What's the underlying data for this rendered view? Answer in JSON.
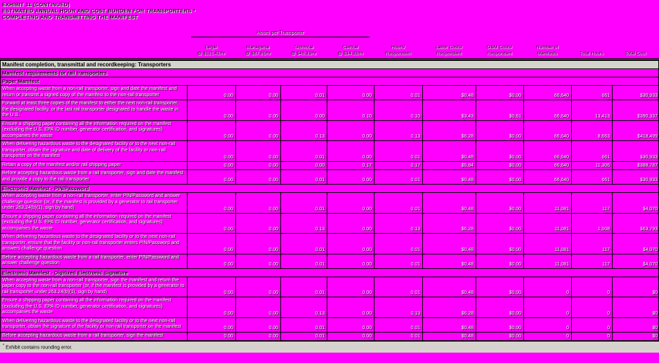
{
  "page": {
    "titles": [
      "EXHIBIT 11 (CONTINUED)",
      "ESTIMATED ANNUAL HOUR AND COST BURDEN FOR TRANSPORTERS *",
      "COMPLETING AND TRANSMITTING THE MANIFEST"
    ]
  },
  "table": {
    "group_header": "Hours per Transporter",
    "columns": [
      {
        "lines": []
      },
      {
        "lines": [
          "Legal",
          "@ $115.42/hr"
        ]
      },
      {
        "lines": [
          "Managerial",
          "@ $87.81/hr"
        ]
      },
      {
        "lines": [
          "Technical",
          "@ $48.33/hr"
        ]
      },
      {
        "lines": [
          "Clerical",
          "@ $34.33/hr"
        ]
      },
      {
        "lines": [
          "Hours/",
          "Respondent"
        ]
      },
      {
        "lines": [
          "Labor Costs/",
          "Respondent"
        ]
      },
      {
        "lines": [
          "O&M Costs/",
          "Respondent"
        ]
      },
      {
        "lines": [
          "Number of",
          "Manifests"
        ]
      },
      {
        "lines": [
          "Total Hours"
        ]
      },
      {
        "lines": [
          "Total Cost"
        ]
      }
    ],
    "band": "Manifest completion, transmittal and recordkeeping:  Transporters",
    "subband": "Manifest requirements for rail transporters",
    "sections": [
      {
        "title": "Paper Manifest",
        "rows": [
          {
            "desc": "When accepting waste from a non-rail transporter, sign and date the manifest and return or transmit a signed copy of the manifest to the non-rail transporter",
            "values": [
              "0.00",
              "0.00",
              "0.01",
              "0.00",
              "0.01",
              "$0.48",
              "$0.00",
              "66,640",
              "661",
              "$30,933"
            ]
          },
          {
            "desc": "Forward at least three copies of the manifest to either the next non-rail transporter, the designated facility, or the last rail transporter designated to handle the waste in the U.S.",
            "values": [
              "0.00",
              "0.00",
              "0.00",
              "0.10",
              "0.10",
              "$3.43",
              "$0.61",
              "66,640",
              "13,413",
              "$390,337"
            ]
          },
          {
            "desc": "Ensure a shipping paper containing all the information required on the manifest (excluding the U.S. EPA ID number, generator certification, and signatures) accompanies the waste",
            "values": [
              "0.00",
              "0.00",
              "0.13",
              "0.00",
              "0.13",
              "$6.28",
              "$0.00",
              "66,640",
              "8,663",
              "$418,499"
            ]
          },
          {
            "desc": "When delivering hazardous waste to the designated facility or to the next non-rail transporter, obtain the signature and date of delivery of the facility or non-rail transporter on the manifest",
            "values": [
              "0.00",
              "0.00",
              "0.01",
              "0.00",
              "0.01",
              "$0.48",
              "$0.00",
              "66,640",
              "661",
              "$30,933"
            ]
          },
          {
            "desc": "Retain a copy of the manifest and/or rail shipping paper",
            "values": [
              "0.00",
              "0.00",
              "0.00",
              "0.17",
              "0.17",
              "$5.84",
              "$0.00",
              "66,640",
              "11,306",
              "$388,787"
            ]
          },
          {
            "desc": "Before accepting hazardous waste from a rail transporter, sign and date the manifest and provide a copy to the rail transporter",
            "values": [
              "0.00",
              "0.00",
              "0.01",
              "0.00",
              "0.01",
              "$0.48",
              "$0.00",
              "66,640",
              "661",
              "$30,933"
            ]
          }
        ]
      },
      {
        "title": "Electronic Manifest - PIN/Password",
        "rows": [
          {
            "desc": "When accepting waste from a non-rail transporter, enter PIN/Password and answer challenge question (or, if the manifest is provided by a generator to rail transporter under 263.24(b)(1), sign by hand)",
            "values": [
              "0.00",
              "0.00",
              "0.01",
              "0.00",
              "0.01",
              "$0.48",
              "$0.00",
              "11,081",
              "117",
              "$4,070"
            ]
          },
          {
            "desc": "Ensure a shipping paper containing all the information required on the manifest (excluding the U.S. EPA ID number, generator certification, and signatures) accompanies the waste",
            "values": [
              "0.00",
              "0.00",
              "0.13",
              "0.00",
              "0.13",
              "$6.28",
              "$0.00",
              "11,081",
              "1,508",
              "$63,793"
            ]
          },
          {
            "desc": "When delivering hazardous waste to the designated facility or to the next non-rail transporter, ensure that the facility or non-rail transporter enters PIN/Password and answers challenge question",
            "values": [
              "0.00",
              "0.00",
              "0.01",
              "0.00",
              "0.01",
              "$0.48",
              "$0.00",
              "11,081",
              "117",
              "$4,070"
            ]
          },
          {
            "desc": "Before accepting hazardous waste from a rail transporter, enter PIN/Password and answer challenge question",
            "values": [
              "0.00",
              "0.00",
              "0.01",
              "0.00",
              "0.01",
              "$0.48",
              "$0.00",
              "11,081",
              "117",
              "$4,070"
            ]
          }
        ]
      },
      {
        "title": "Electronic Manifest - Digitized Electronic Signature",
        "rows": [
          {
            "desc": "When accepting waste from a non-rail transporter, sign the manifest and return the paper copy to the non-rail transporter (or, if the manifest is provided by a generator to rail transporter under 263.24(b)(1), sign by hand)",
            "values": [
              "0.00",
              "0.00",
              "0.01",
              "0.00",
              "0.01",
              "$0.48",
              "$0.00",
              "0",
              "0",
              "$0"
            ]
          },
          {
            "desc": "Ensure a shipping paper containing all the information required on the manifest (excluding the U.S. EPA ID number, generator certification, and signatures) accompanies the waste",
            "values": [
              "0.00",
              "0.00",
              "0.13",
              "0.00",
              "0.13",
              "$6.28",
              "$0.00",
              "0",
              "0",
              "$0"
            ]
          },
          {
            "desc": "When delivering hazardous waste to the designated facility or to the next non-rail transporter, obtain the signature of the facility or non-rail transporter on the manifest",
            "values": [
              "0.00",
              "0.00",
              "0.01",
              "0.00",
              "0.01",
              "$0.48",
              "$0.00",
              "0",
              "0",
              "$0"
            ]
          },
          {
            "desc": "Before accepting hazardous waste from a rail transporter, sign the manifest",
            "values": [
              "0.00",
              "0.00",
              "0.01",
              "0.00",
              "0.01",
              "$0.48",
              "$0.00",
              "0",
              "0",
              "$0"
            ]
          }
        ]
      }
    ],
    "footnote_mark": "*",
    "footnote_text": "Exhibit contains rounding error."
  }
}
